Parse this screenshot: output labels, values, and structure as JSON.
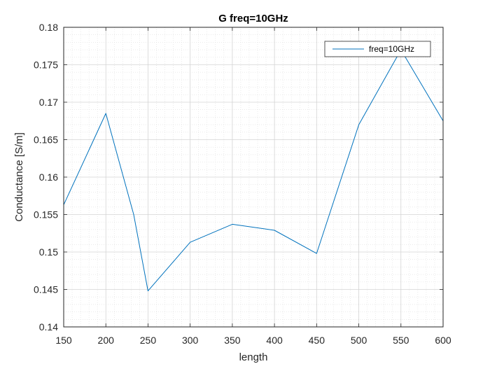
{
  "chart_data": {
    "type": "line",
    "title": "G freq=10GHz",
    "xlabel": "length",
    "ylabel": "Conductance [S/m]",
    "xlim": [
      150,
      600
    ],
    "ylim": [
      0.14,
      0.18
    ],
    "xticks": [
      150,
      200,
      250,
      300,
      350,
      400,
      450,
      500,
      550,
      600
    ],
    "xtick_labels": [
      "150",
      "200",
      "250",
      "300",
      "350",
      "400",
      "450",
      "500",
      "550",
      "600"
    ],
    "yticks": [
      0.14,
      0.145,
      0.15,
      0.155,
      0.16,
      0.165,
      0.17,
      0.175,
      0.18
    ],
    "ytick_labels": [
      "0.14",
      "0.145",
      "0.15",
      "0.155",
      "0.16",
      "0.165",
      "0.17",
      "0.175",
      "0.18"
    ],
    "grid": true,
    "minor_grid": true,
    "legend_position": "top-right",
    "series": [
      {
        "name": "freq=10GHz",
        "color": "#0072BD",
        "x": [
          150,
          200,
          233,
          250,
          300,
          350,
          400,
          450,
          500,
          550,
          600
        ],
        "y": [
          0.1563,
          0.1685,
          0.155,
          0.1448,
          0.1513,
          0.1537,
          0.1529,
          0.1498,
          0.167,
          0.177,
          0.1675
        ]
      }
    ]
  }
}
